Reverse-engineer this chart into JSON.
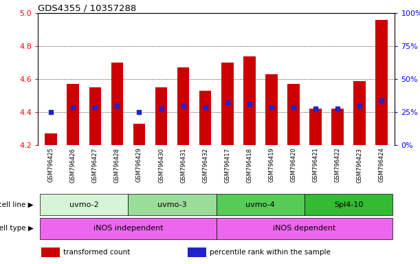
{
  "title": "GDS4355 / 10357288",
  "samples": [
    "GSM796425",
    "GSM796426",
    "GSM796427",
    "GSM796428",
    "GSM796429",
    "GSM796430",
    "GSM796431",
    "GSM796432",
    "GSM796417",
    "GSM796418",
    "GSM796419",
    "GSM796420",
    "GSM796421",
    "GSM796422",
    "GSM796423",
    "GSM796424"
  ],
  "bar_values": [
    4.27,
    4.57,
    4.55,
    4.7,
    4.33,
    4.55,
    4.67,
    4.53,
    4.7,
    4.74,
    4.63,
    4.57,
    4.42,
    4.42,
    4.59,
    4.96
  ],
  "dot_values": [
    4.4,
    4.43,
    4.43,
    4.44,
    4.4,
    4.42,
    4.44,
    4.43,
    4.46,
    4.45,
    4.43,
    4.43,
    4.42,
    4.42,
    4.44,
    4.47
  ],
  "ymin": 4.2,
  "ymax": 5.0,
  "y_ticks": [
    4.2,
    4.4,
    4.6,
    4.8,
    5.0
  ],
  "y2_ticks": [
    0,
    25,
    50,
    75,
    100
  ],
  "bar_color": "#cc0000",
  "dot_color": "#2222cc",
  "bar_bottom": 4.2,
  "cell_lines": [
    {
      "label": "uvmo-2",
      "start": 0,
      "end": 3,
      "color": "#d6f5d6"
    },
    {
      "label": "uvmo-3",
      "start": 4,
      "end": 7,
      "color": "#99dd99"
    },
    {
      "label": "uvmo-4",
      "start": 8,
      "end": 11,
      "color": "#55cc55"
    },
    {
      "label": "Spl4-10",
      "start": 12,
      "end": 15,
      "color": "#33bb33"
    }
  ],
  "cell_types": [
    {
      "label": "iNOS independent",
      "start": 0,
      "end": 7,
      "color": "#ee66ee"
    },
    {
      "label": "iNOS dependent",
      "start": 8,
      "end": 15,
      "color": "#ee66ee"
    }
  ],
  "grid_lines": [
    4.4,
    4.6,
    4.8
  ],
  "legend_red": "transformed count",
  "legend_blue": "percentile rank within the sample"
}
